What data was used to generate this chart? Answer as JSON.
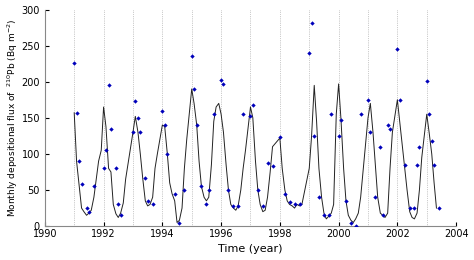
{
  "title": "",
  "xlabel": "Time (year)",
  "ylabel": "Monthly depositional flux of  $^{210}$Pb (Bq m$^{-2}$)",
  "xlim": [
    1990,
    2004
  ],
  "ylim": [
    0,
    300
  ],
  "xticks": [
    1990,
    1992,
    1994,
    1996,
    1998,
    2000,
    2002,
    2004
  ],
  "yticks": [
    0,
    50,
    100,
    150,
    200,
    250,
    300
  ],
  "line_color": "#222222",
  "scatter_color": "#0000bb",
  "bg_color": "#ffffff",
  "grid_color": "#aaaaaa",
  "line_data": [
    [
      1991.0,
      157
    ],
    [
      1991.08,
      90
    ],
    [
      1991.17,
      56
    ],
    [
      1991.25,
      25
    ],
    [
      1991.33,
      20
    ],
    [
      1991.42,
      15
    ],
    [
      1991.5,
      18
    ],
    [
      1991.58,
      22
    ],
    [
      1991.67,
      40
    ],
    [
      1991.75,
      65
    ],
    [
      1991.83,
      90
    ],
    [
      1991.92,
      105
    ],
    [
      1992.0,
      165
    ],
    [
      1992.08,
      138
    ],
    [
      1992.17,
      80
    ],
    [
      1992.25,
      75
    ],
    [
      1992.33,
      30
    ],
    [
      1992.42,
      17
    ],
    [
      1992.5,
      12
    ],
    [
      1992.58,
      18
    ],
    [
      1992.67,
      32
    ],
    [
      1992.75,
      65
    ],
    [
      1993.0,
      130
    ],
    [
      1993.08,
      152
    ],
    [
      1993.17,
      130
    ],
    [
      1993.25,
      100
    ],
    [
      1993.33,
      67
    ],
    [
      1993.42,
      35
    ],
    [
      1993.5,
      28
    ],
    [
      1993.58,
      30
    ],
    [
      1993.67,
      40
    ],
    [
      1993.75,
      80
    ],
    [
      1993.83,
      100
    ],
    [
      1994.0,
      140
    ],
    [
      1994.08,
      138
    ],
    [
      1994.17,
      100
    ],
    [
      1994.25,
      60
    ],
    [
      1994.33,
      45
    ],
    [
      1994.42,
      35
    ],
    [
      1994.5,
      5
    ],
    [
      1994.58,
      8
    ],
    [
      1994.67,
      25
    ],
    [
      1994.75,
      80
    ],
    [
      1994.83,
      120
    ],
    [
      1995.0,
      190
    ],
    [
      1995.08,
      170
    ],
    [
      1995.17,
      140
    ],
    [
      1995.25,
      90
    ],
    [
      1995.33,
      55
    ],
    [
      1995.42,
      40
    ],
    [
      1995.5,
      35
    ],
    [
      1995.58,
      40
    ],
    [
      1995.67,
      85
    ],
    [
      1995.75,
      145
    ],
    [
      1995.83,
      165
    ],
    [
      1995.92,
      170
    ],
    [
      1996.0,
      155
    ],
    [
      1996.08,
      130
    ],
    [
      1996.17,
      85
    ],
    [
      1996.25,
      50
    ],
    [
      1996.33,
      30
    ],
    [
      1996.42,
      25
    ],
    [
      1996.5,
      22
    ],
    [
      1996.58,
      28
    ],
    [
      1996.67,
      50
    ],
    [
      1996.75,
      80
    ],
    [
      1996.83,
      105
    ],
    [
      1997.0,
      165
    ],
    [
      1997.08,
      150
    ],
    [
      1997.17,
      90
    ],
    [
      1997.25,
      50
    ],
    [
      1997.33,
      30
    ],
    [
      1997.42,
      20
    ],
    [
      1997.5,
      22
    ],
    [
      1997.58,
      40
    ],
    [
      1997.67,
      75
    ],
    [
      1997.75,
      110
    ],
    [
      1998.0,
      122
    ],
    [
      1998.08,
      80
    ],
    [
      1998.17,
      50
    ],
    [
      1998.25,
      35
    ],
    [
      1998.33,
      30
    ],
    [
      1998.42,
      28
    ],
    [
      1998.5,
      25
    ],
    [
      1998.58,
      30
    ],
    [
      1998.67,
      28
    ],
    [
      1998.75,
      30
    ],
    [
      1999.0,
      80
    ],
    [
      1999.08,
      125
    ],
    [
      1999.17,
      195
    ],
    [
      1999.25,
      145
    ],
    [
      1999.33,
      80
    ],
    [
      1999.42,
      40
    ],
    [
      1999.5,
      18
    ],
    [
      1999.58,
      10
    ],
    [
      1999.67,
      14
    ],
    [
      1999.75,
      18
    ],
    [
      1999.83,
      30
    ],
    [
      1999.92,
      155
    ],
    [
      2000.0,
      197
    ],
    [
      2000.08,
      148
    ],
    [
      2000.17,
      80
    ],
    [
      2000.25,
      35
    ],
    [
      2000.33,
      15
    ],
    [
      2000.42,
      8
    ],
    [
      2000.5,
      5
    ],
    [
      2000.58,
      10
    ],
    [
      2000.67,
      18
    ],
    [
      2000.75,
      40
    ],
    [
      2001.0,
      150
    ],
    [
      2001.08,
      170
    ],
    [
      2001.17,
      130
    ],
    [
      2001.25,
      85
    ],
    [
      2001.33,
      40
    ],
    [
      2001.42,
      18
    ],
    [
      2001.5,
      15
    ],
    [
      2001.58,
      12
    ],
    [
      2001.67,
      18
    ],
    [
      2001.75,
      80
    ],
    [
      2001.83,
      130
    ],
    [
      2002.0,
      175
    ],
    [
      2002.08,
      145
    ],
    [
      2002.17,
      110
    ],
    [
      2002.25,
      80
    ],
    [
      2002.33,
      50
    ],
    [
      2002.42,
      20
    ],
    [
      2002.5,
      12
    ],
    [
      2002.58,
      10
    ],
    [
      2002.67,
      18
    ],
    [
      2002.75,
      50
    ],
    [
      2002.83,
      95
    ],
    [
      2003.0,
      155
    ],
    [
      2003.08,
      130
    ],
    [
      2003.17,
      100
    ],
    [
      2003.25,
      60
    ],
    [
      2003.33,
      25
    ]
  ],
  "scatter_data": [
    [
      1991.0,
      226
    ],
    [
      1991.08,
      157
    ],
    [
      1991.17,
      90
    ],
    [
      1991.25,
      58
    ],
    [
      1991.42,
      25
    ],
    [
      1991.5,
      20
    ],
    [
      1991.67,
      55
    ],
    [
      1992.0,
      80
    ],
    [
      1992.08,
      105
    ],
    [
      1992.17,
      196
    ],
    [
      1992.25,
      135
    ],
    [
      1992.42,
      80
    ],
    [
      1992.5,
      30
    ],
    [
      1992.58,
      15
    ],
    [
      1993.0,
      130
    ],
    [
      1993.08,
      173
    ],
    [
      1993.17,
      150
    ],
    [
      1993.25,
      130
    ],
    [
      1993.42,
      67
    ],
    [
      1993.5,
      35
    ],
    [
      1993.67,
      30
    ],
    [
      1994.0,
      160
    ],
    [
      1994.08,
      140
    ],
    [
      1994.17,
      100
    ],
    [
      1994.42,
      45
    ],
    [
      1994.58,
      5
    ],
    [
      1994.75,
      50
    ],
    [
      1995.0,
      236
    ],
    [
      1995.08,
      190
    ],
    [
      1995.17,
      140
    ],
    [
      1995.33,
      55
    ],
    [
      1995.5,
      30
    ],
    [
      1995.58,
      50
    ],
    [
      1995.75,
      155
    ],
    [
      1996.0,
      203
    ],
    [
      1996.08,
      197
    ],
    [
      1996.25,
      50
    ],
    [
      1996.42,
      28
    ],
    [
      1996.58,
      28
    ],
    [
      1996.75,
      155
    ],
    [
      1997.0,
      152
    ],
    [
      1997.08,
      168
    ],
    [
      1997.25,
      50
    ],
    [
      1997.42,
      28
    ],
    [
      1997.58,
      87
    ],
    [
      1997.75,
      83
    ],
    [
      1998.0,
      123
    ],
    [
      1998.17,
      45
    ],
    [
      1998.33,
      33
    ],
    [
      1998.5,
      30
    ],
    [
      1998.67,
      30
    ],
    [
      1999.0,
      240
    ],
    [
      1999.08,
      281
    ],
    [
      1999.17,
      125
    ],
    [
      1999.33,
      40
    ],
    [
      1999.5,
      15
    ],
    [
      1999.67,
      15
    ],
    [
      1999.75,
      155
    ],
    [
      2000.0,
      125
    ],
    [
      2000.08,
      147
    ],
    [
      2000.25,
      35
    ],
    [
      2000.42,
      5
    ],
    [
      2000.58,
      0
    ],
    [
      2000.75,
      155
    ],
    [
      2001.0,
      175
    ],
    [
      2001.08,
      130
    ],
    [
      2001.25,
      40
    ],
    [
      2001.42,
      110
    ],
    [
      2001.5,
      15
    ],
    [
      2001.67,
      140
    ],
    [
      2001.75,
      135
    ],
    [
      2002.0,
      246
    ],
    [
      2002.08,
      175
    ],
    [
      2002.25,
      85
    ],
    [
      2002.42,
      25
    ],
    [
      2002.58,
      25
    ],
    [
      2002.67,
      85
    ],
    [
      2002.75,
      110
    ],
    [
      2003.0,
      201
    ],
    [
      2003.08,
      155
    ],
    [
      2003.17,
      118
    ],
    [
      2003.25,
      85
    ],
    [
      2003.42,
      25
    ]
  ]
}
